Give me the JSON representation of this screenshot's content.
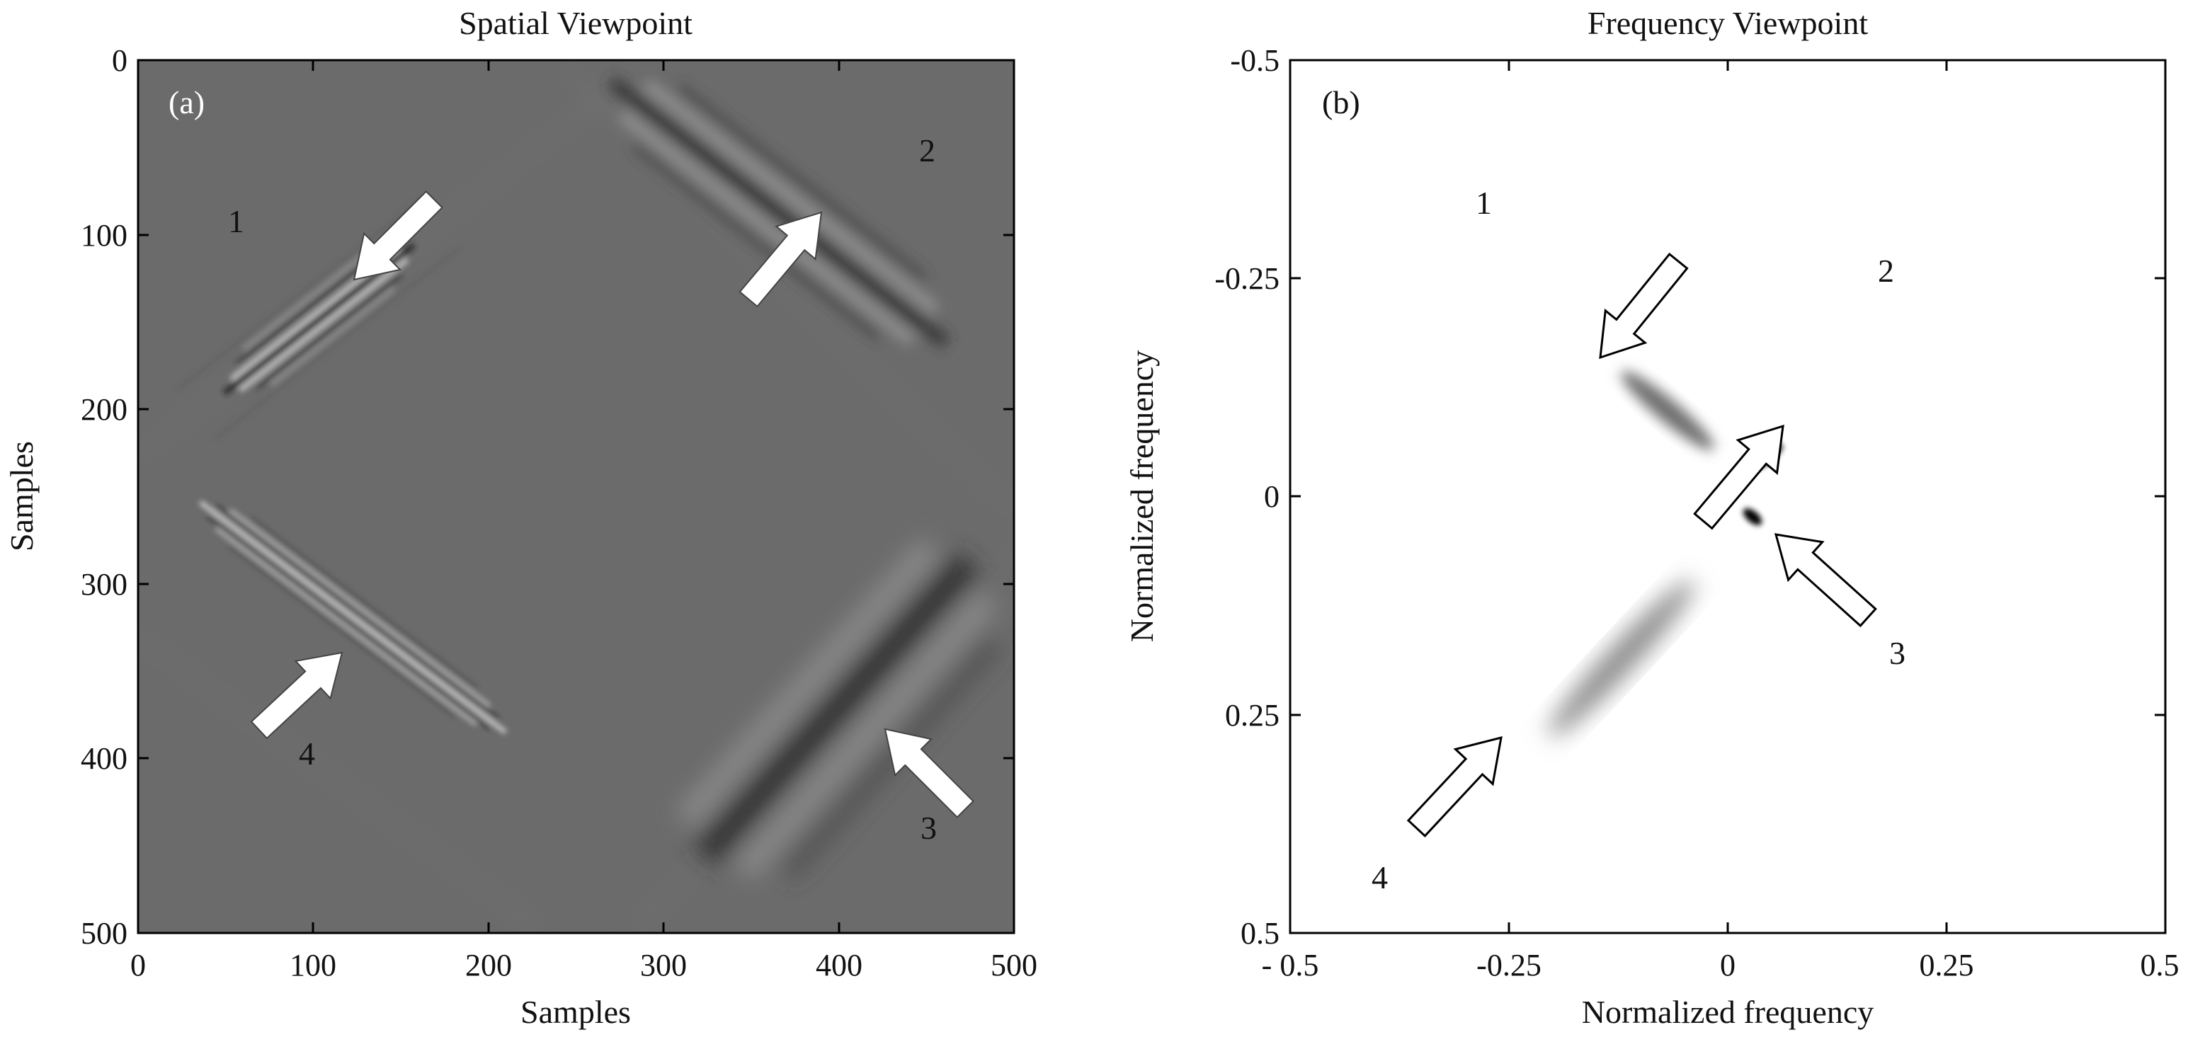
{
  "figure": {
    "panel_a": {
      "title": "Spatial Viewpoint",
      "tag": "(a)",
      "xlabel": "Samples",
      "ylabel": "Samples",
      "xticks": [
        "0",
        "100",
        "200",
        "300",
        "400",
        "500"
      ],
      "yticks": [
        "0",
        "100",
        "200",
        "300",
        "400",
        "500"
      ],
      "xlim": [
        0,
        500
      ],
      "ylim": [
        0,
        500
      ],
      "background_color": "#6b6b6b",
      "arrow_labels": [
        "1",
        "2",
        "3",
        "4"
      ]
    },
    "panel_b": {
      "title": "Frequency Viewpoint",
      "tag": "(b)",
      "xlabel": "Normalized frequency",
      "ylabel": "Normalized frequency",
      "xticks": [
        "- 0.5",
        "-0.25",
        "0",
        "0.25",
        "0.5"
      ],
      "yticks": [
        "-0.5",
        "-0.25",
        "0",
        "0.25",
        "0.5"
      ],
      "xlim": [
        -0.5,
        0.5
      ],
      "ylim": [
        -0.5,
        0.5
      ],
      "arrow_labels": [
        "1",
        "2",
        "3",
        "4"
      ]
    }
  }
}
